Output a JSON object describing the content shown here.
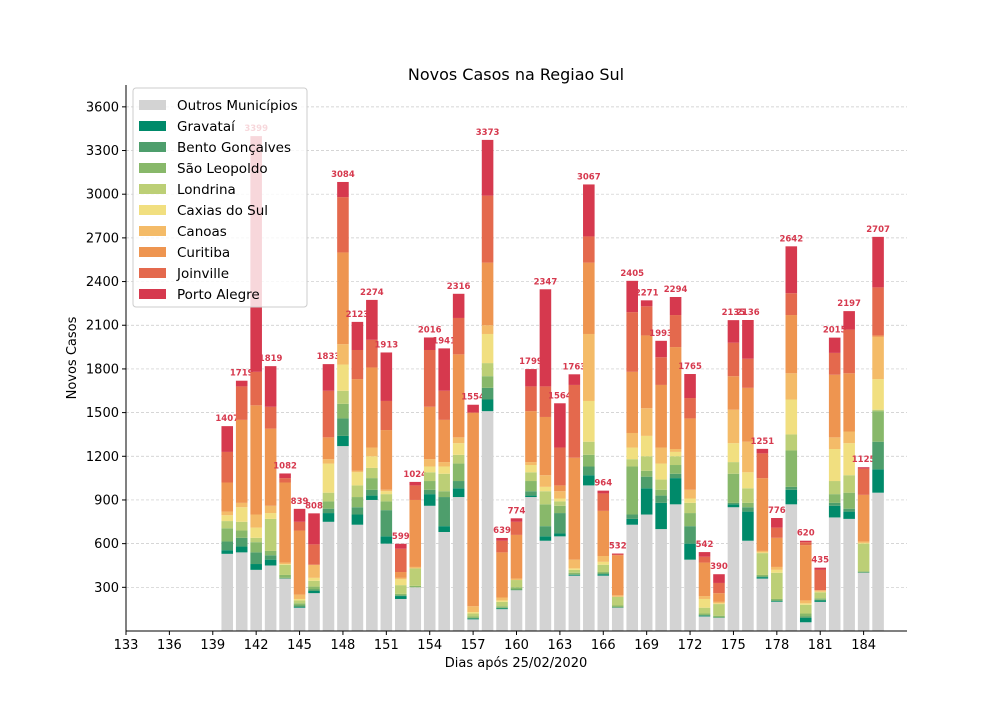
{
  "chart_data": {
    "type": "stacked_bar",
    "title": "Novos Casos na Regiao Sul",
    "x_label": "Dias após 25/02/2020",
    "y_label": "Novos Casos",
    "x": [
      140,
      141,
      142,
      143,
      144,
      145,
      146,
      147,
      148,
      149,
      150,
      151,
      152,
      153,
      154,
      155,
      156,
      157,
      158,
      159,
      160,
      161,
      162,
      163,
      164,
      165,
      166,
      167,
      168,
      169,
      170,
      171,
      172,
      173,
      174,
      175,
      176,
      177,
      178,
      179,
      180,
      181,
      182,
      183,
      184,
      185
    ],
    "series": [
      {
        "name": "Outros Municípios",
        "color": "#d3d3d3",
        "values": [
          530,
          540,
          420,
          450,
          360,
          160,
          260,
          750,
          1270,
          730,
          900,
          600,
          220,
          300,
          860,
          680,
          920,
          80,
          1510,
          150,
          280,
          920,
          620,
          650,
          380,
          1000,
          380,
          160,
          730,
          800,
          700,
          870,
          490,
          100,
          90,
          850,
          620,
          360,
          200,
          870,
          60,
          200,
          780,
          770,
          400,
          950
        ]
      },
      {
        "name": "Gravataí",
        "color": "#008a6a",
        "values": [
          25,
          40,
          40,
          40,
          0,
          5,
          15,
          60,
          70,
          70,
          30,
          50,
          20,
          0,
          80,
          40,
          60,
          5,
          80,
          5,
          0,
          10,
          30,
          20,
          5,
          70,
          10,
          0,
          40,
          180,
          180,
          180,
          110,
          5,
          0,
          20,
          200,
          10,
          5,
          100,
          30,
          10,
          80,
          50,
          0,
          160
        ]
      },
      {
        "name": "Bento Gonçalves",
        "color": "#4e9e6c",
        "values": [
          60,
          60,
          80,
          30,
          5,
          10,
          10,
          30,
          120,
          50,
          40,
          180,
          5,
          0,
          30,
          200,
          50,
          5,
          80,
          5,
          5,
          30,
          70,
          140,
          5,
          60,
          5,
          5,
          30,
          80,
          50,
          30,
          120,
          5,
          5,
          10,
          30,
          5,
          5,
          20,
          10,
          5,
          20,
          20,
          5,
          190
        ]
      },
      {
        "name": "São Leopoldo",
        "color": "#88b86a",
        "values": [
          90,
          50,
          70,
          30,
          20,
          15,
          20,
          50,
          100,
          70,
          80,
          60,
          10,
          10,
          60,
          40,
          120,
          10,
          80,
          10,
          15,
          70,
          150,
          50,
          10,
          80,
          10,
          10,
          330,
          40,
          40,
          60,
          90,
          10,
          10,
          200,
          30,
          10,
          10,
          250,
          20,
          10,
          60,
          110,
          5,
          210
        ]
      },
      {
        "name": "Londrina",
        "color": "#bccf76",
        "values": [
          50,
          60,
          30,
          220,
          70,
          20,
          40,
          60,
          90,
          80,
          70,
          50,
          60,
          120,
          60,
          120,
          60,
          20,
          90,
          30,
          50,
          60,
          90,
          30,
          20,
          90,
          50,
          60,
          50,
          100,
          70,
          60,
          70,
          40,
          80,
          80,
          100,
          150,
          180,
          110,
          60,
          40,
          90,
          120,
          190,
          10
        ]
      },
      {
        "name": "Caxias do Sul",
        "color": "#f1df80",
        "values": [
          40,
          100,
          70,
          40,
          5,
          10,
          20,
          200,
          180,
          90,
          80,
          20,
          40,
          0,
          40,
          50,
          80,
          10,
          200,
          10,
          0,
          50,
          30,
          20,
          10,
          280,
          20,
          0,
          80,
          140,
          110,
          30,
          30,
          60,
          5,
          130,
          110,
          5,
          20,
          240,
          10,
          5,
          220,
          220,
          5,
          210
        ]
      },
      {
        "name": "Canoas",
        "color": "#f4bb68",
        "values": [
          25,
          30,
          90,
          50,
          10,
          30,
          90,
          30,
          140,
          10,
          60,
          10,
          10,
          10,
          50,
          30,
          40,
          40,
          60,
          20,
          10,
          20,
          80,
          50,
          60,
          460,
          40,
          10,
          100,
          190,
          110,
          20,
          60,
          20,
          10,
          230,
          210,
          10,
          20,
          180,
          20,
          10,
          80,
          80,
          10,
          290
        ]
      },
      {
        "name": "Curitiba",
        "color": "#ee9550",
        "values": [
          200,
          570,
          750,
          530,
          550,
          440,
          0,
          150,
          630,
          630,
          550,
          410,
          40,
          460,
          360,
          290,
          570,
          1330,
          430,
          310,
          300,
          350,
          400,
          40,
          700,
          490,
          310,
          275,
          420,
          500,
          430,
          700,
          490,
          230,
          60,
          230,
          370,
          500,
          200,
          400,
          380,
          0,
          430,
          400,
          320,
          10
        ]
      },
      {
        "name": "Joinville",
        "color": "#e4694d",
        "values": [
          210,
          230,
          230,
          150,
          30,
          60,
          140,
          320,
          380,
          200,
          190,
          200,
          160,
          100,
          390,
          200,
          250,
          0,
          460,
          80,
          90,
          170,
          210,
          260,
          500,
          180,
          120,
          5,
          410,
          200,
          190,
          220,
          140,
          40,
          70,
          230,
          200,
          170,
          70,
          150,
          20,
          140,
          150,
          300,
          180,
          330
        ]
      },
      {
        "name": "Porto Alegre",
        "color": "#d6394e",
        "values": [
          177,
          39,
          1619,
          279,
          32,
          89,
          213,
          183,
          104,
          193,
          274,
          333,
          34,
          24,
          86,
          291,
          166,
          54,
          383,
          19,
          24,
          119,
          667,
          304,
          73,
          357,
          19,
          7,
          215,
          41,
          113,
          124,
          165,
          32,
          60,
          155,
          266,
          31,
          66,
          322,
          10,
          15,
          105,
          127,
          10,
          347
        ]
      }
    ],
    "totals": [
      1407,
      1719,
      3399,
      1819,
      1082,
      839,
      808,
      1833,
      3084,
      2123,
      2274,
      1913,
      599,
      1024,
      2016,
      1941,
      2316,
      1554,
      3373,
      639,
      774,
      1799,
      2347,
      1564,
      1763,
      3067,
      964,
      532,
      2405,
      2271,
      1993,
      2294,
      1765,
      542,
      390,
      2135,
      2136,
      1251,
      776,
      2642,
      620,
      435,
      2015,
      2197,
      1125,
      2707
    ],
    "xlim": [
      133,
      187
    ],
    "ylim": [
      0,
      3750
    ],
    "xticks": [
      133,
      136,
      139,
      142,
      145,
      148,
      151,
      154,
      157,
      160,
      163,
      166,
      169,
      172,
      175,
      178,
      181,
      184
    ],
    "yticks": [
      300,
      600,
      900,
      1200,
      1500,
      1800,
      2100,
      2400,
      2700,
      3000,
      3300,
      3600
    ],
    "grid": true,
    "legend": "upper left"
  }
}
